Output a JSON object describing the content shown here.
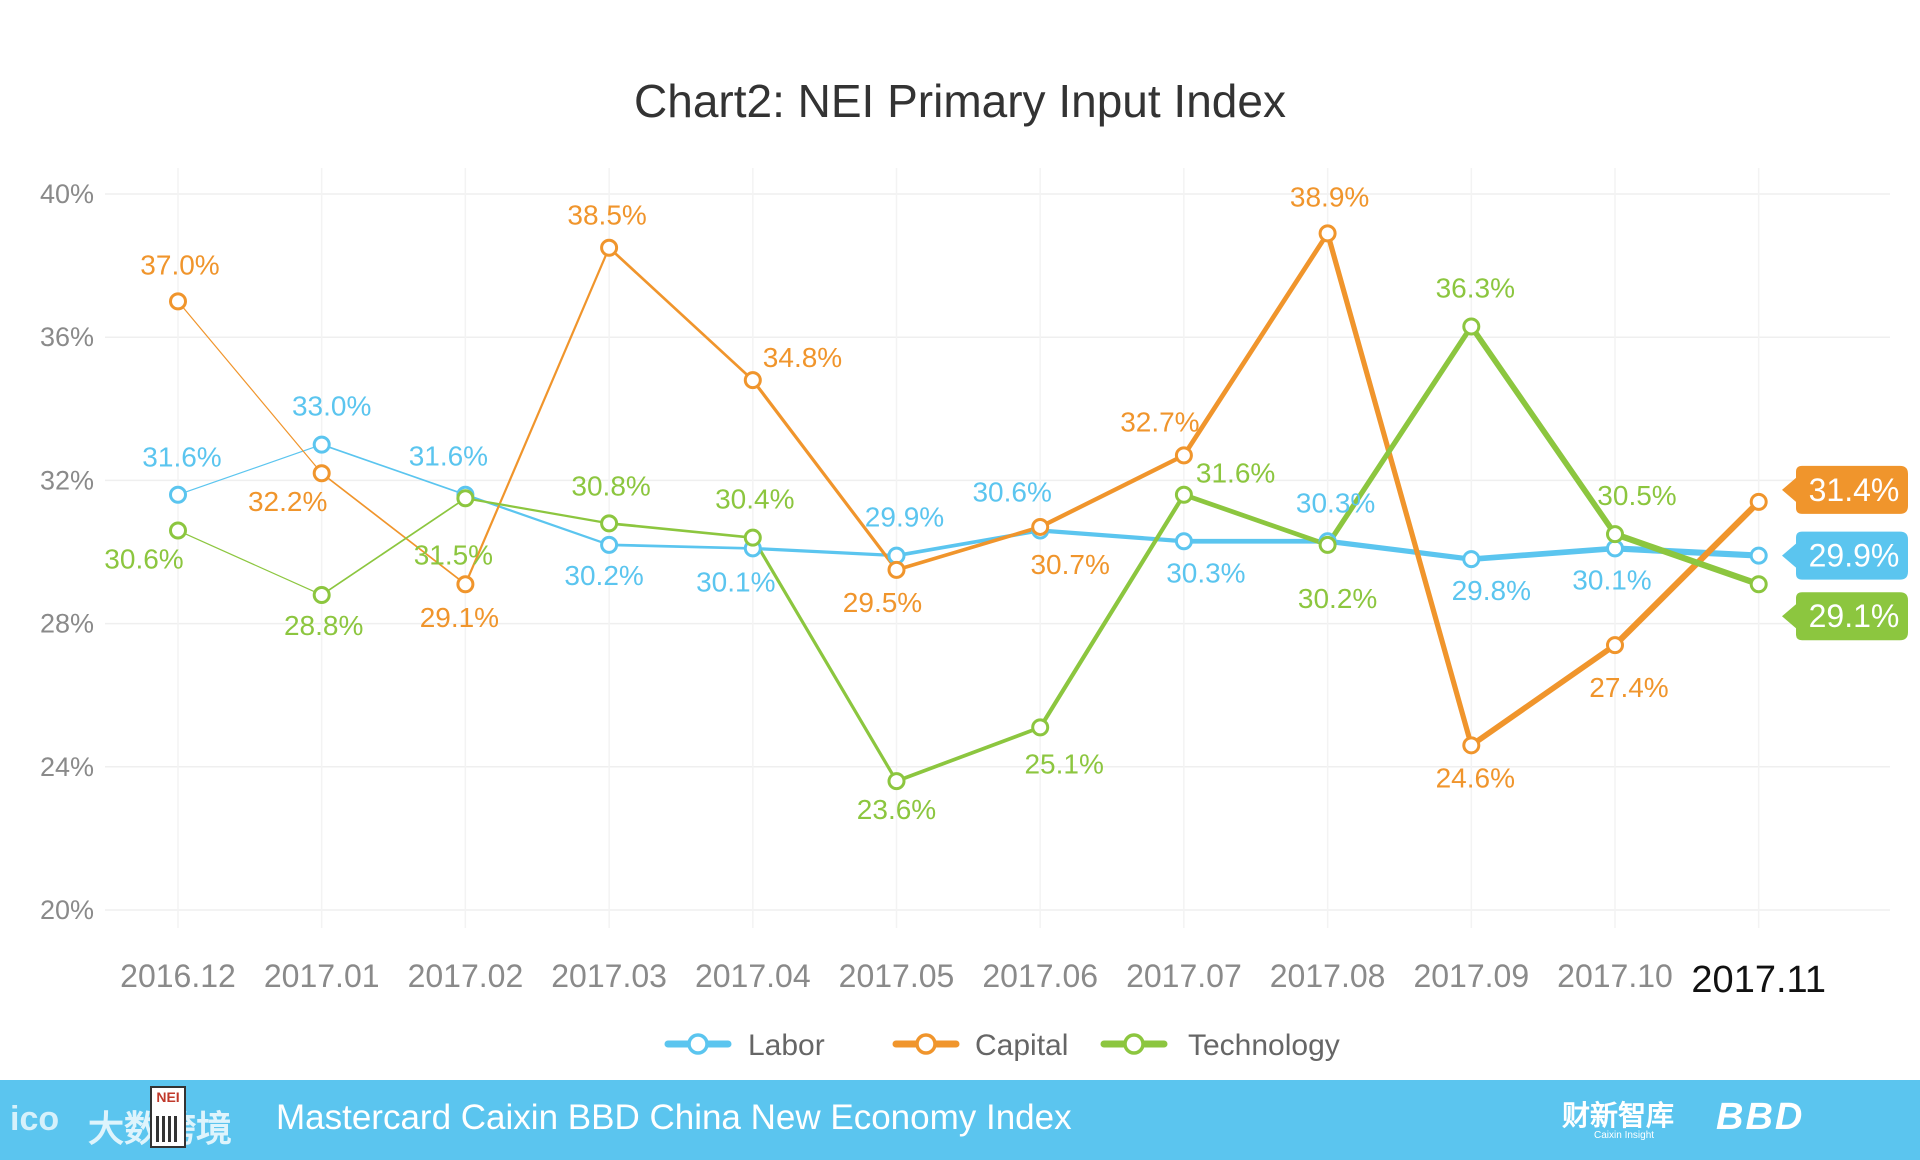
{
  "footer": {
    "title": "Mastercard Caixin BBD China New Economy Index",
    "watermark": "大数跨境",
    "watermark_logo": "ico",
    "badge": "NEI",
    "caixin_cn": "财新智库",
    "caixin_en": "Caixin Insight",
    "bbd": "BBD"
  },
  "chart_data": {
    "type": "line",
    "title": "Chart2: NEI Primary Input Index",
    "categories": [
      "2016.12",
      "2017.01",
      "2017.02",
      "2017.03",
      "2017.04",
      "2017.05",
      "2017.06",
      "2017.07",
      "2017.08",
      "2017.09",
      "2017.10",
      "2017.11"
    ],
    "highlight_category": "2017.11",
    "xlabel": "",
    "ylabel": "",
    "ylim": [
      20,
      40
    ],
    "yticks": [
      20,
      24,
      28,
      32,
      36,
      40
    ],
    "ytick_labels": [
      "20%",
      "24%",
      "28%",
      "32%",
      "36%",
      "40%"
    ],
    "grid": true,
    "legend_position": "bottom-center",
    "series": [
      {
        "name": "Labor",
        "color": "#5bc5ef",
        "values": [
          31.6,
          33.0,
          31.6,
          30.2,
          30.1,
          29.9,
          30.6,
          30.3,
          30.3,
          29.8,
          30.1,
          29.9
        ],
        "labels": [
          "31.6%",
          "33.0%",
          "31.6%",
          "30.2%",
          "30.1%",
          "29.9%",
          "30.6%",
          "30.3%",
          "30.3%",
          "29.8%",
          "30.1%",
          ""
        ],
        "end_label": "29.9%"
      },
      {
        "name": "Capital",
        "color": "#f0952c",
        "values": [
          37.0,
          32.2,
          29.1,
          38.5,
          34.8,
          29.5,
          30.7,
          32.7,
          38.9,
          24.6,
          27.4,
          31.4
        ],
        "labels": [
          "37.0%",
          "32.2%",
          "29.1%",
          "38.5%",
          "34.8%",
          "29.5%",
          "30.7%",
          "32.7%",
          "38.9%",
          "24.6%",
          "27.4%",
          ""
        ],
        "end_label": "31.4%"
      },
      {
        "name": "Technology",
        "color": "#8cc63f",
        "values": [
          30.6,
          28.8,
          31.5,
          30.8,
          30.4,
          23.6,
          25.1,
          31.6,
          30.2,
          36.3,
          30.5,
          29.1
        ],
        "labels": [
          "30.6%",
          "28.8%",
          "31.5%",
          "30.8%",
          "30.4%",
          "23.6%",
          "25.1%",
          "31.6%",
          "30.2%",
          "36.3%",
          "30.5%",
          ""
        ],
        "end_label": "29.1%"
      }
    ]
  }
}
